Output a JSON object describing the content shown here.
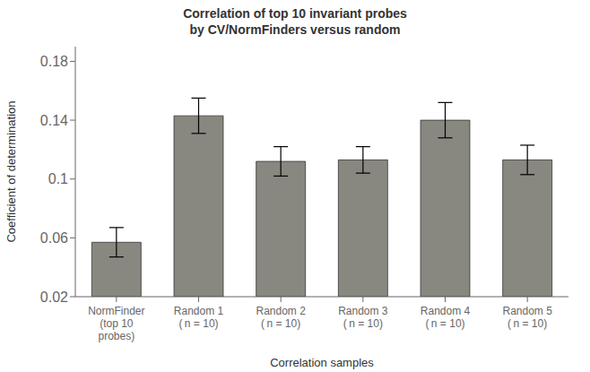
{
  "chart_data": {
    "type": "bar",
    "title": "Correlation of top 10 invariant probes\nby CV/NormFinders versus random",
    "xlabel": "Correlation samples",
    "ylabel": "Coefficient of determination",
    "categories": [
      "NormFinder\n(top 10\nprobes)",
      "Random 1\n( n = 10)",
      "Random 2\n( n = 10)",
      "Random 3\n( n = 10)",
      "Random 4\n( n = 10)",
      "Random 5\n( n = 10)"
    ],
    "values": [
      0.057,
      0.143,
      0.112,
      0.113,
      0.14,
      0.113
    ],
    "errors": [
      0.01,
      0.012,
      0.01,
      0.009,
      0.012,
      0.01
    ],
    "color": "#888880",
    "ylim": [
      0.02,
      0.19
    ],
    "yticks": [
      0.02,
      0.06,
      0.1,
      0.14,
      0.18
    ],
    "grid": false
  }
}
